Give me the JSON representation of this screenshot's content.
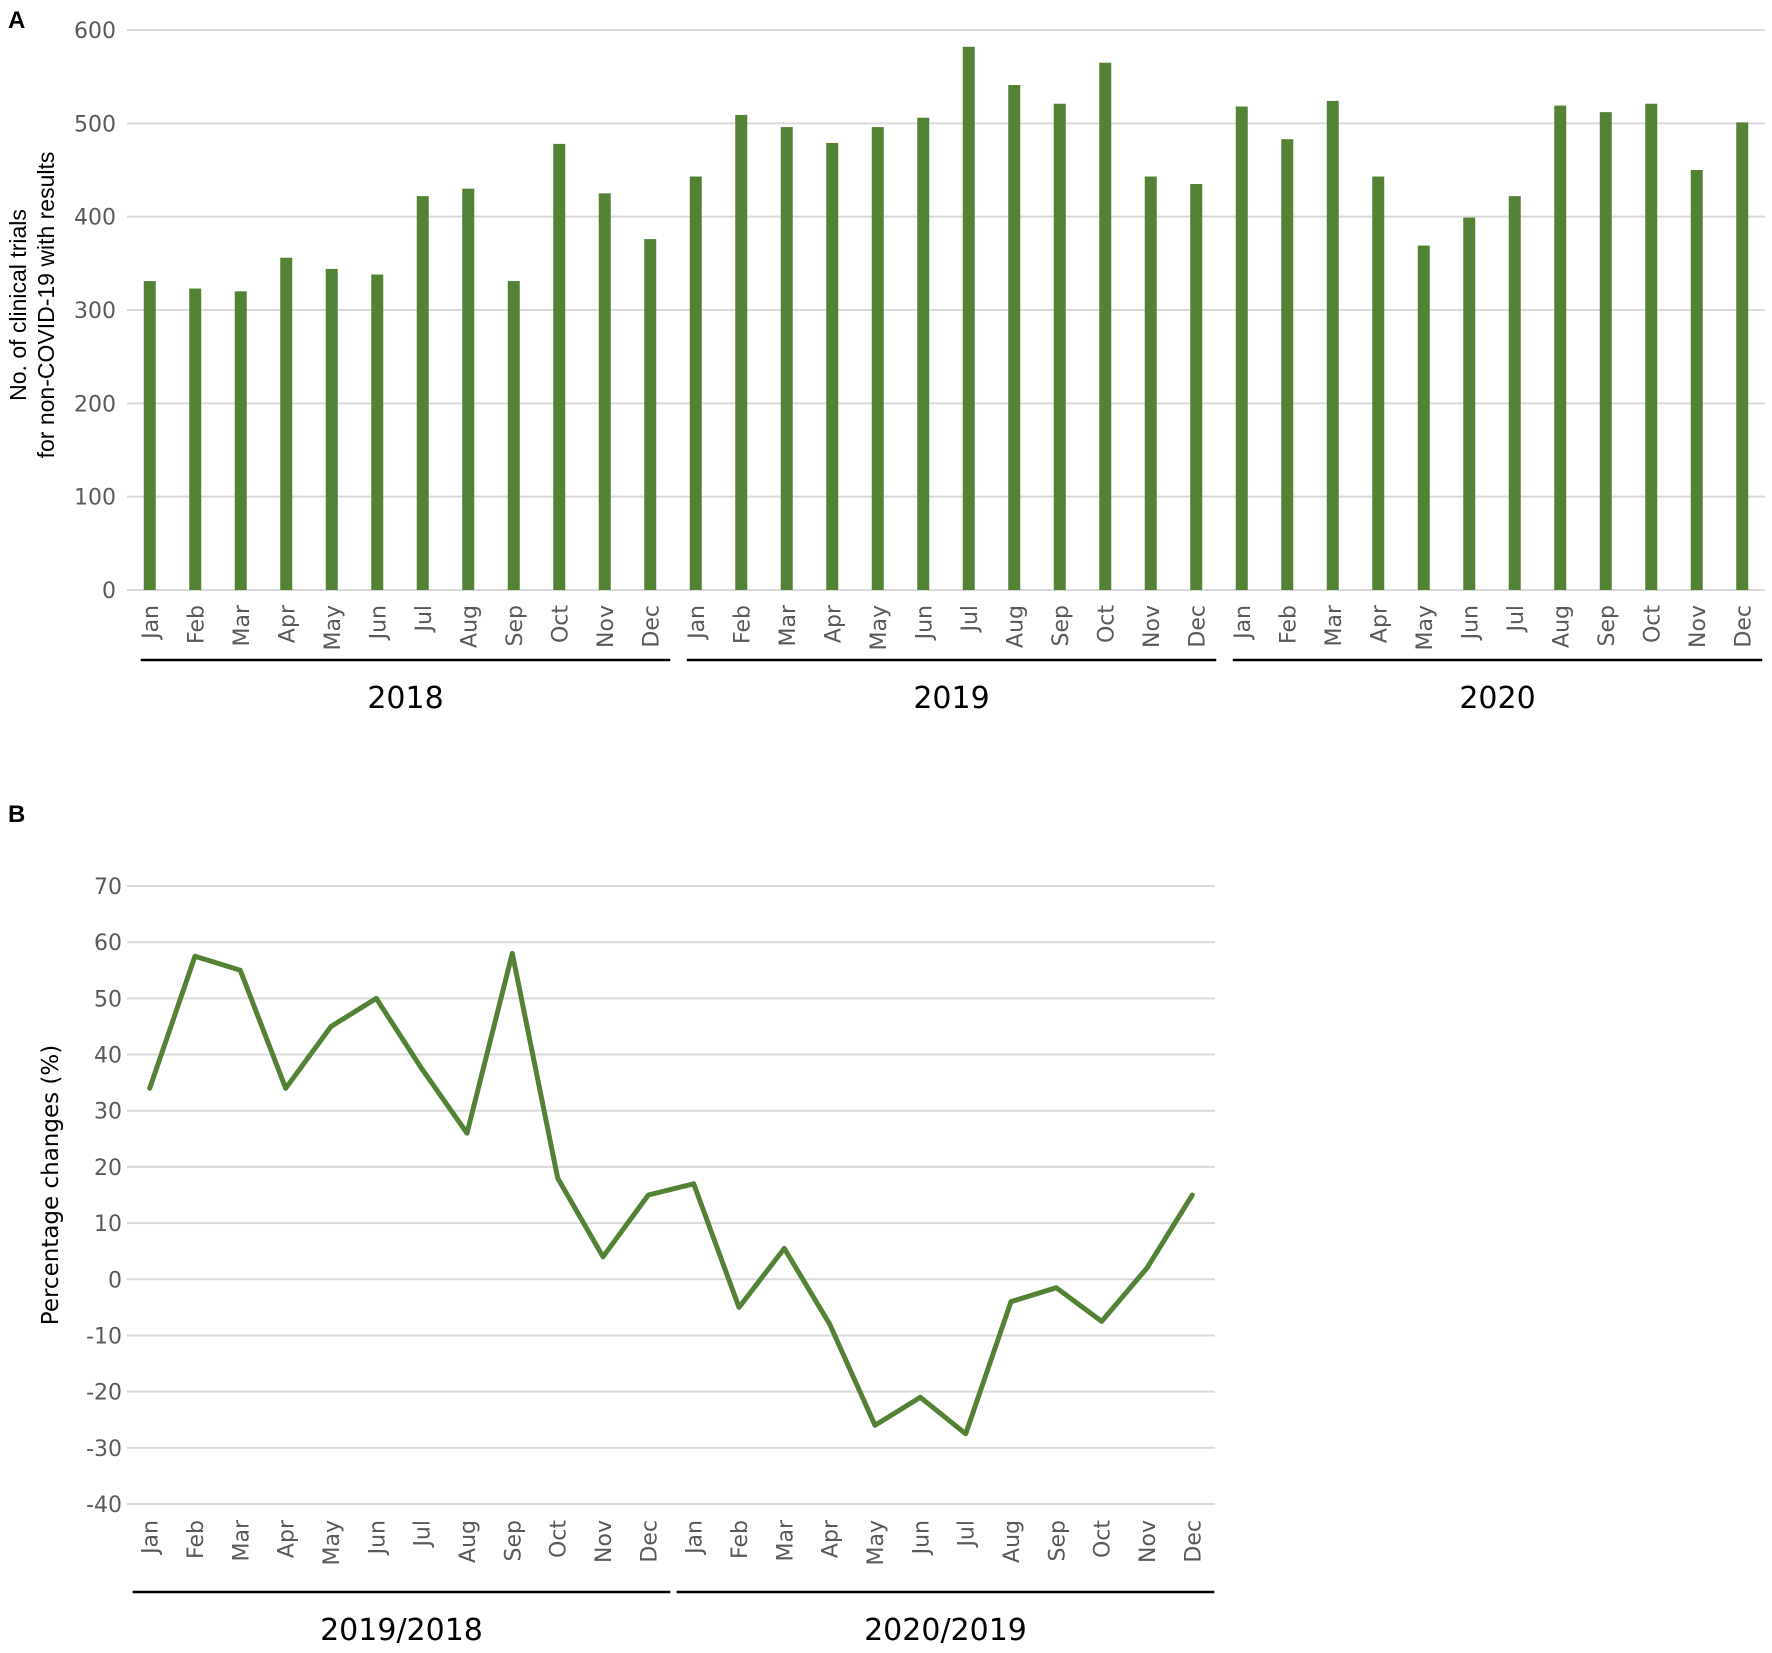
{
  "colors": {
    "bar": "#548235",
    "line": "#548235",
    "grid": "#d9d9d9",
    "tick": "#595959"
  },
  "chart_data": [
    {
      "panel": "A",
      "type": "bar",
      "ylabel_lines": [
        "No. of clinical trials",
        "for non-COVID-19 with results"
      ],
      "ylim": [
        0,
        600
      ],
      "yticks": [
        "0",
        "100",
        "200",
        "300",
        "400",
        "500",
        "600"
      ],
      "categories": [
        "Jan",
        "Feb",
        "Mar",
        "Apr",
        "May",
        "Jun",
        "Jul",
        "Aug",
        "Sep",
        "Oct",
        "Nov",
        "Dec",
        "Jan",
        "Feb",
        "Mar",
        "Apr",
        "May",
        "Jun",
        "Jul",
        "Aug",
        "Sep",
        "Oct",
        "Nov",
        "Dec",
        "Jan",
        "Feb",
        "Mar",
        "Apr",
        "May",
        "Jun",
        "Jul",
        "Aug",
        "Sep",
        "Oct",
        "Nov",
        "Dec"
      ],
      "groups": [
        {
          "label": "2018",
          "start": 0,
          "end": 11
        },
        {
          "label": "2019",
          "start": 12,
          "end": 23
        },
        {
          "label": "2020",
          "start": 24,
          "end": 35
        }
      ],
      "values": [
        331,
        323,
        320,
        356,
        344,
        338,
        422,
        430,
        331,
        478,
        425,
        376,
        443,
        509,
        496,
        479,
        496,
        506,
        582,
        541,
        521,
        565,
        443,
        435,
        518,
        483,
        524,
        443,
        369,
        399,
        422,
        519,
        512,
        521,
        450,
        501
      ],
      "grid": true
    },
    {
      "panel": "B",
      "type": "line",
      "ylabel": "Percentage changes (%)",
      "ylim": [
        -40,
        70
      ],
      "yticks": [
        "70",
        "60",
        "50",
        "40",
        "30",
        "20",
        "10",
        "0",
        "-10",
        "-20",
        "-30",
        "-40"
      ],
      "categories": [
        "Jan",
        "Feb",
        "Mar",
        "Apr",
        "May",
        "Jun",
        "Jul",
        "Aug",
        "Sep",
        "Oct",
        "Nov",
        "Dec",
        "Jan",
        "Feb",
        "Mar",
        "Apr",
        "May",
        "Jun",
        "Jul",
        "Aug",
        "Sep",
        "Oct",
        "Nov",
        "Dec"
      ],
      "groups": [
        {
          "label": "2019/2018",
          "start": 0,
          "end": 11
        },
        {
          "label": "2020/2019",
          "start": 12,
          "end": 23
        }
      ],
      "values": [
        34,
        57.5,
        55,
        34,
        45,
        50,
        37.5,
        26,
        58,
        18,
        4,
        15,
        17,
        -5,
        5.5,
        -8,
        -26,
        -21,
        -27.5,
        -4,
        -1.5,
        -7.5,
        2,
        15
      ],
      "grid": true
    }
  ]
}
